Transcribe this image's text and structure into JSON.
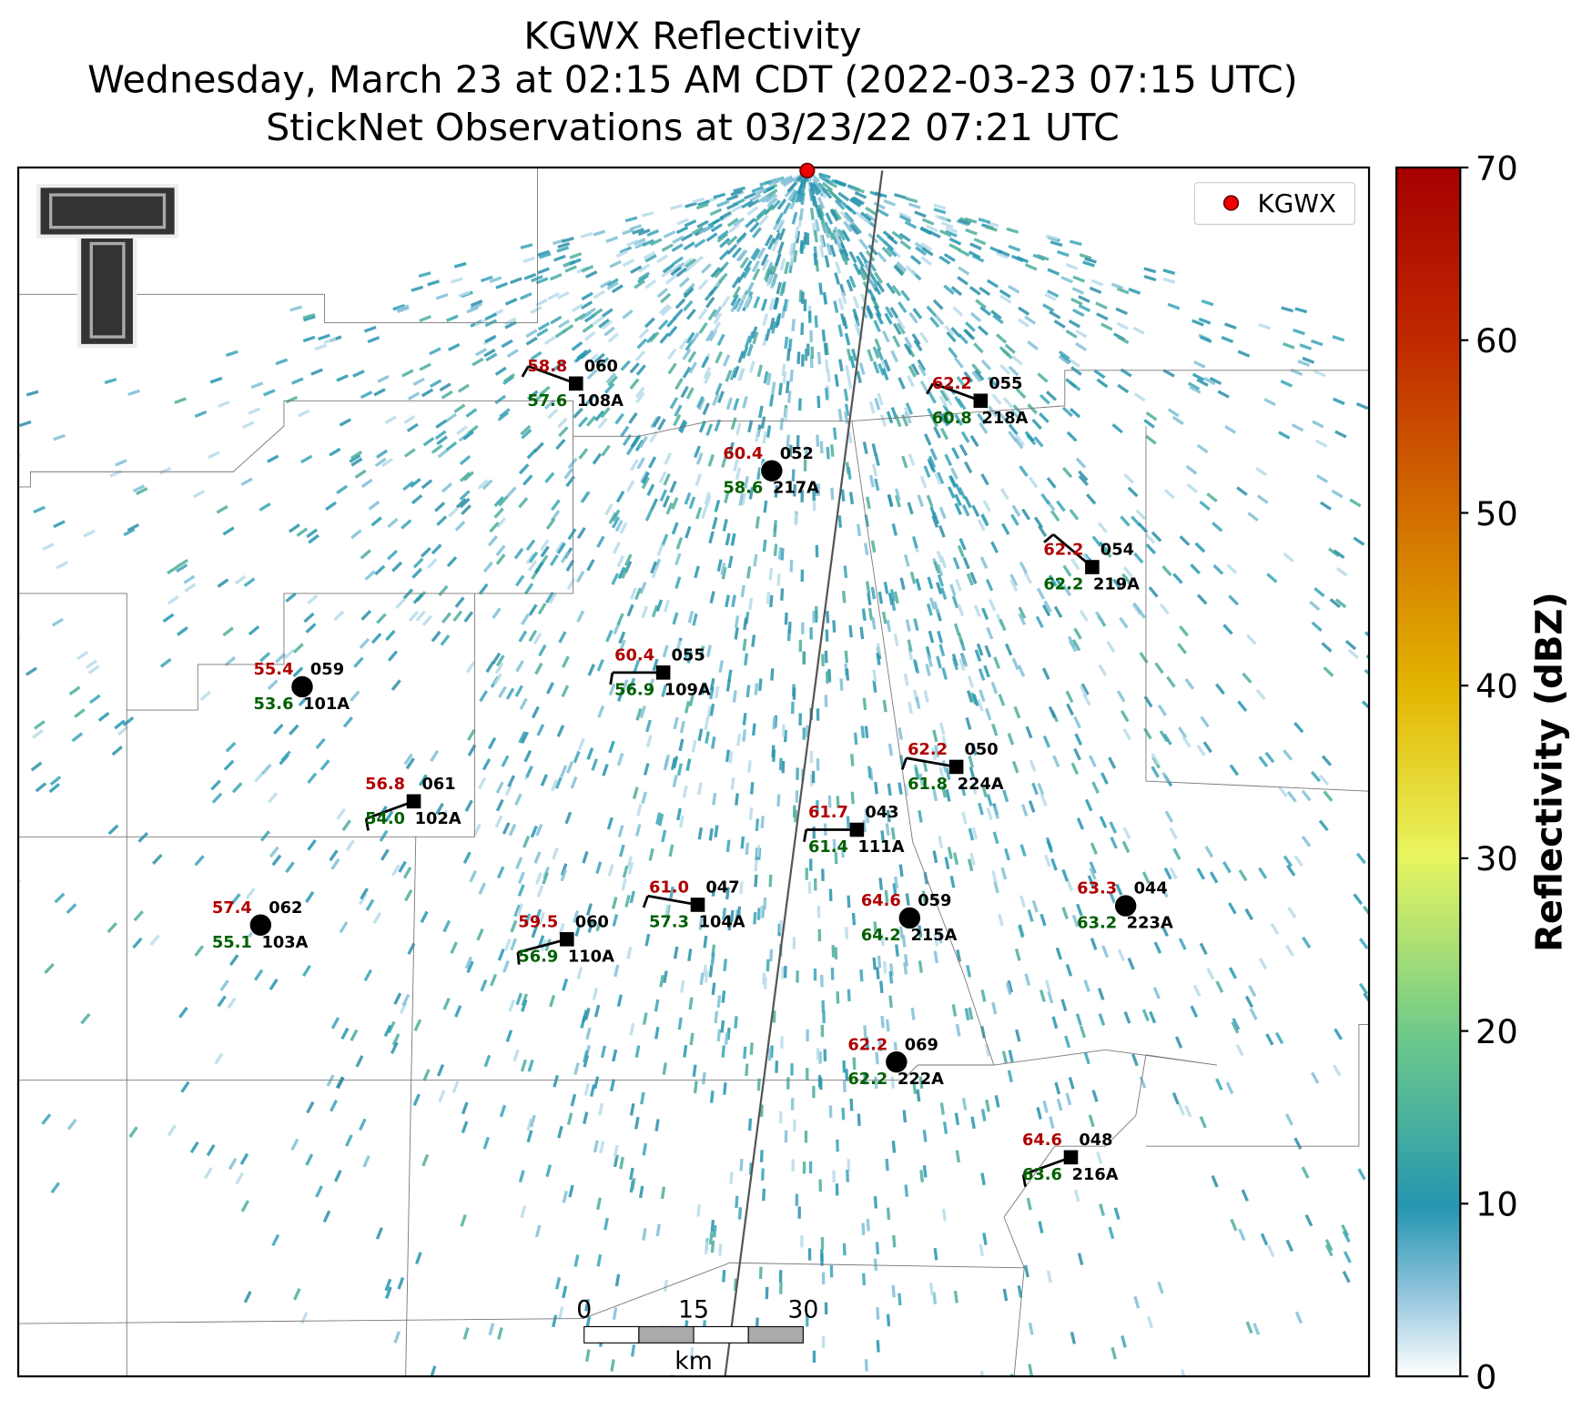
{
  "header": {
    "title": "KGWX Reflectivity",
    "subtitle": "Wednesday, March 23 at 02:15 AM CDT (2022-03-23 07:15 UTC)",
    "observations": "StickNet Observations at 03/23/22 07:21 UTC"
  },
  "legend": {
    "label": "KGWX"
  },
  "colorbar": {
    "label": "Reflectivity (dBZ)",
    "ticks": [
      "0",
      "10",
      "20",
      "30",
      "40",
      "50",
      "60",
      "70"
    ]
  },
  "scale_bar": {
    "labels": [
      "0",
      "15",
      "30"
    ],
    "unit": "km"
  },
  "stations": [
    {
      "id": "108A",
      "temperature": "58.8",
      "dewpoint": "57.6",
      "pressure": "060"
    },
    {
      "id": "218A",
      "temperature": "62.2",
      "dewpoint": "60.8",
      "pressure": "055"
    },
    {
      "id": "217A",
      "temperature": "60.4",
      "dewpoint": "58.6",
      "pressure": "052"
    },
    {
      "id": "219A",
      "temperature": "62.2",
      "dewpoint": "62.2",
      "pressure": "054"
    },
    {
      "id": "101A",
      "temperature": "55.4",
      "dewpoint": "53.6",
      "pressure": "059"
    },
    {
      "id": "109A",
      "temperature": "60.4",
      "dewpoint": "56.9",
      "pressure": "055"
    },
    {
      "id": "224A",
      "temperature": "62.2",
      "dewpoint": "61.8",
      "pressure": "050"
    },
    {
      "id": "102A",
      "temperature": "56.8",
      "dewpoint": "54.0",
      "pressure": "061"
    },
    {
      "id": "111A",
      "temperature": "61.7",
      "dewpoint": "61.4",
      "pressure": "043"
    },
    {
      "id": "103A",
      "temperature": "57.4",
      "dewpoint": "55.1",
      "pressure": "062"
    },
    {
      "id": "110A",
      "temperature": "59.5",
      "dewpoint": "56.9",
      "pressure": "060"
    },
    {
      "id": "104A",
      "temperature": "61.0",
      "dewpoint": "57.3",
      "pressure": "047"
    },
    {
      "id": "215A",
      "temperature": "64.6",
      "dewpoint": "64.2",
      "pressure": "059"
    },
    {
      "id": "223A",
      "temperature": "63.3",
      "dewpoint": "63.2",
      "pressure": "044"
    },
    {
      "id": "222A",
      "temperature": "62.2",
      "dewpoint": "62.2",
      "pressure": "069"
    },
    {
      "id": "216A",
      "temperature": "64.6",
      "dewpoint": "63.6",
      "pressure": "048"
    }
  ]
}
